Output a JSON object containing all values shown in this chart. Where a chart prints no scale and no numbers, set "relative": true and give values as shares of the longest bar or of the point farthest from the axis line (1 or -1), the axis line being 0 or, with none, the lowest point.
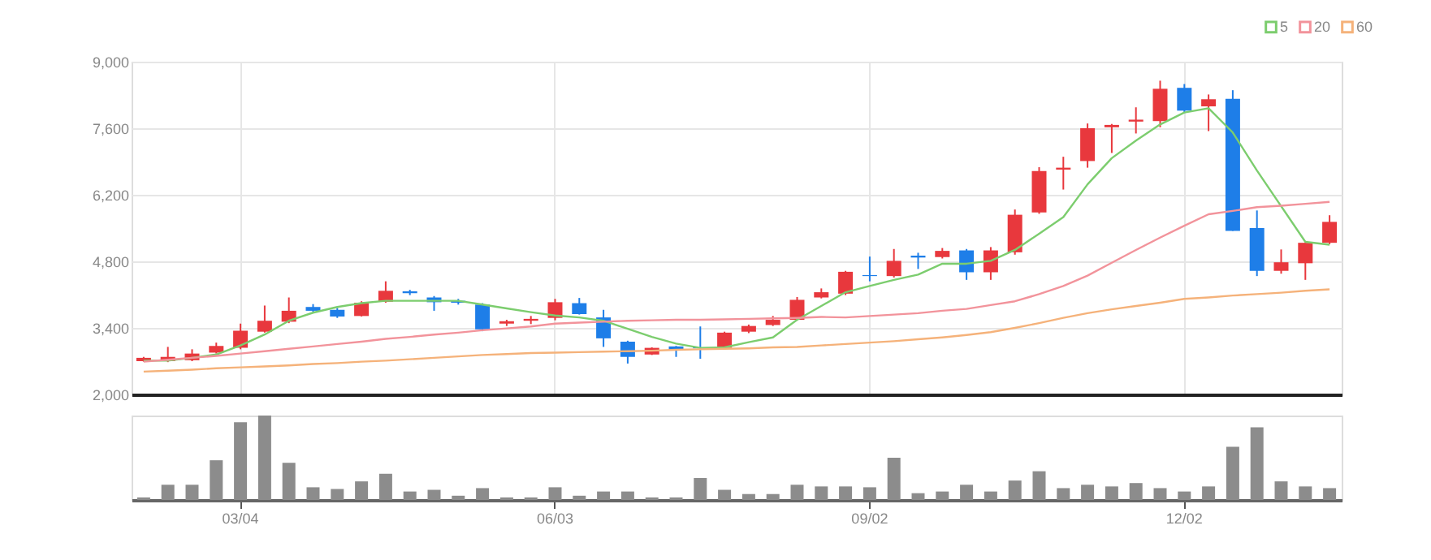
{
  "chart_data": [
    {
      "type": "candlestick",
      "categories": [
        null,
        null,
        null,
        null,
        null,
        null,
        null,
        null,
        null,
        null,
        null,
        null,
        null,
        null,
        null,
        null,
        null,
        null,
        null,
        null,
        null,
        null,
        null,
        null,
        null,
        null,
        null,
        null,
        null,
        null,
        null,
        null,
        null,
        null,
        null,
        null,
        null,
        null,
        null,
        null,
        null,
        null,
        null,
        null,
        null,
        null,
        null,
        null,
        null,
        null
      ],
      "ohlc": [
        [
          2700,
          2790,
          2690,
          2770
        ],
        [
          2700,
          3000,
          2680,
          2790
        ],
        [
          2720,
          2950,
          2700,
          2860
        ],
        [
          2880,
          3090,
          2860,
          3020
        ],
        [
          2980,
          3490,
          2950,
          3340
        ],
        [
          3320,
          3870,
          3300,
          3550
        ],
        [
          3530,
          4040,
          3500,
          3760
        ],
        [
          3840,
          3900,
          3740,
          3760
        ],
        [
          3780,
          3820,
          3610,
          3640
        ],
        [
          3650,
          3960,
          3640,
          3930
        ],
        [
          3950,
          4380,
          3930,
          4180
        ],
        [
          4170,
          4200,
          4090,
          4130
        ],
        [
          4040,
          4070,
          3760,
          3940
        ],
        [
          3970,
          4010,
          3890,
          3930
        ],
        [
          3890,
          3920,
          3330,
          3370
        ],
        [
          3490,
          3570,
          3440,
          3540
        ],
        [
          3550,
          3650,
          3480,
          3590
        ],
        [
          3610,
          4010,
          3560,
          3940
        ],
        [
          3920,
          4030,
          3680,
          3690
        ],
        [
          3620,
          3780,
          3000,
          3180
        ],
        [
          3110,
          3130,
          2650,
          2790
        ],
        [
          2840,
          2990,
          2830,
          2980
        ],
        [
          3010,
          3020,
          2790,
          2930
        ],
        [
          2990,
          3430,
          2750,
          2970
        ],
        [
          2980,
          3320,
          2950,
          3300
        ],
        [
          3320,
          3470,
          3290,
          3440
        ],
        [
          3460,
          3650,
          3440,
          3570
        ],
        [
          3570,
          4050,
          3560,
          3990
        ],
        [
          4040,
          4230,
          4020,
          4150
        ],
        [
          4120,
          4600,
          4090,
          4580
        ],
        [
          4510,
          4900,
          4380,
          4490
        ],
        [
          4490,
          5060,
          4460,
          4810
        ],
        [
          4920,
          4980,
          4640,
          4880
        ],
        [
          4890,
          5080,
          4860,
          5020
        ],
        [
          5030,
          5060,
          4410,
          4570
        ],
        [
          4570,
          5100,
          4410,
          5030
        ],
        [
          4990,
          5890,
          4940,
          5780
        ],
        [
          5830,
          6780,
          5800,
          6700
        ],
        [
          6730,
          7000,
          6310,
          6770
        ],
        [
          6910,
          7700,
          6770,
          7600
        ],
        [
          7620,
          7690,
          7080,
          7670
        ],
        [
          7740,
          8040,
          7490,
          7780
        ],
        [
          7750,
          8600,
          7620,
          8430
        ],
        [
          8450,
          8530,
          7920,
          7970
        ],
        [
          8060,
          8310,
          7540,
          8210
        ],
        [
          8220,
          8400,
          5440,
          5440
        ],
        [
          5500,
          5870,
          4490,
          4600
        ],
        [
          4600,
          5050,
          4540,
          4780
        ],
        [
          4760,
          5190,
          4410,
          5190
        ],
        [
          5190,
          5770,
          5160,
          5630
        ]
      ],
      "colors": [
        "#e8383d",
        "#e8383d",
        "#e8383d",
        "#e8383d",
        "#e8383d",
        "#e8383d",
        "#e8383d",
        "#1e7ee8",
        "#1e7ee8",
        "#e8383d",
        "#e8383d",
        "#1e7ee8",
        "#1e7ee8",
        "#1e7ee8",
        "#1e7ee8",
        "#e8383d",
        "#e8383d",
        "#e8383d",
        "#1e7ee8",
        "#1e7ee8",
        "#1e7ee8",
        "#e8383d",
        "#1e7ee8",
        "#1e7ee8",
        "#e8383d",
        "#e8383d",
        "#e8383d",
        "#e8383d",
        "#e8383d",
        "#e8383d",
        "#1e7ee8",
        "#e8383d",
        "#1e7ee8",
        "#e8383d",
        "#1e7ee8",
        "#e8383d",
        "#e8383d",
        "#e8383d",
        "#e8383d",
        "#e8383d",
        "#e8383d",
        "#e8383d",
        "#e8383d",
        "#1e7ee8",
        "#e8383d",
        "#1e7ee8",
        "#1e7ee8",
        "#e8383d",
        "#e8383d",
        "#e8383d"
      ],
      "series": [
        {
          "name": "5",
          "type": "line",
          "color": "#7ccd6e",
          "values": [
            2710,
            2710,
            2770,
            2840,
            3030,
            3260,
            3550,
            3720,
            3840,
            3920,
            3970,
            3970,
            3970,
            3970,
            3890,
            3810,
            3730,
            3660,
            3620,
            3550,
            3380,
            3210,
            3070,
            2980,
            2990,
            3100,
            3200,
            3570,
            3860,
            4150,
            4280,
            4410,
            4520,
            4750,
            4750,
            4810,
            5040,
            5380,
            5730,
            6420,
            6970,
            7340,
            7680,
            7930,
            8020,
            7510,
            6710,
            5960,
            5210,
            5150
          ]
        },
        {
          "name": "20",
          "type": "line",
          "color": "#f2939b",
          "values": [
            2690,
            2730,
            2770,
            2810,
            2860,
            2910,
            2960,
            3010,
            3060,
            3110,
            3170,
            3210,
            3260,
            3300,
            3350,
            3390,
            3430,
            3490,
            3510,
            3530,
            3550,
            3560,
            3570,
            3570,
            3580,
            3590,
            3600,
            3610,
            3630,
            3620,
            3650,
            3680,
            3710,
            3760,
            3800,
            3880,
            3960,
            4110,
            4280,
            4500,
            4770,
            5040,
            5300,
            5550,
            5790,
            5860,
            5940,
            5970,
            6010,
            6050
          ]
        },
        {
          "name": "60",
          "type": "line",
          "color": "#f5b27a",
          "values": [
            2480,
            2500,
            2520,
            2550,
            2570,
            2590,
            2610,
            2640,
            2660,
            2690,
            2710,
            2740,
            2770,
            2800,
            2830,
            2850,
            2870,
            2880,
            2890,
            2900,
            2910,
            2920,
            2940,
            2950,
            2960,
            2970,
            2990,
            3000,
            3030,
            3060,
            3090,
            3120,
            3160,
            3200,
            3250,
            3310,
            3400,
            3500,
            3610,
            3710,
            3790,
            3860,
            3930,
            4010,
            4040,
            4080,
            4110,
            4140,
            4180,
            4210
          ]
        }
      ],
      "ylim": [
        2000,
        9000
      ],
      "yticks": [
        {
          "value": 2000,
          "label": "2,000"
        },
        {
          "value": 3400,
          "label": "3,400"
        },
        {
          "value": 4800,
          "label": "4,800"
        },
        {
          "value": 6200,
          "label": "6,200"
        },
        {
          "value": 7600,
          "label": "7,600"
        },
        {
          "value": 9000,
          "label": "9,000"
        }
      ],
      "grid": true,
      "legend": "top right",
      "tick_labels": "y"
    },
    {
      "type": "bar",
      "relative": true,
      "color": "#8c8c8c",
      "categories": [
        null,
        null,
        null,
        null,
        "03/04",
        null,
        null,
        null,
        null,
        null,
        null,
        null,
        null,
        null,
        null,
        null,
        null,
        "06/03",
        null,
        null,
        null,
        null,
        null,
        null,
        null,
        null,
        null,
        null,
        null,
        null,
        "09/02",
        null,
        null,
        null,
        null,
        null,
        null,
        null,
        null,
        null,
        null,
        null,
        null,
        "12/02",
        null,
        null,
        null,
        null,
        null,
        null
      ],
      "values": [
        0.03,
        0.18,
        0.18,
        0.47,
        0.92,
        1,
        0.44,
        0.15,
        0.13,
        0.22,
        0.31,
        0.1,
        0.12,
        0.05,
        0.14,
        0.03,
        0.03,
        0.15,
        0.05,
        0.1,
        0.1,
        0.03,
        0.03,
        0.26,
        0.12,
        0.07,
        0.07,
        0.18,
        0.16,
        0.16,
        0.15,
        0.5,
        0.08,
        0.1,
        0.18,
        0.1,
        0.23,
        0.34,
        0.14,
        0.18,
        0.16,
        0.2,
        0.14,
        0.1,
        0.16,
        0.63,
        0.86,
        0.22,
        0.16,
        0.14
      ],
      "tick_labels": "x"
    }
  ]
}
